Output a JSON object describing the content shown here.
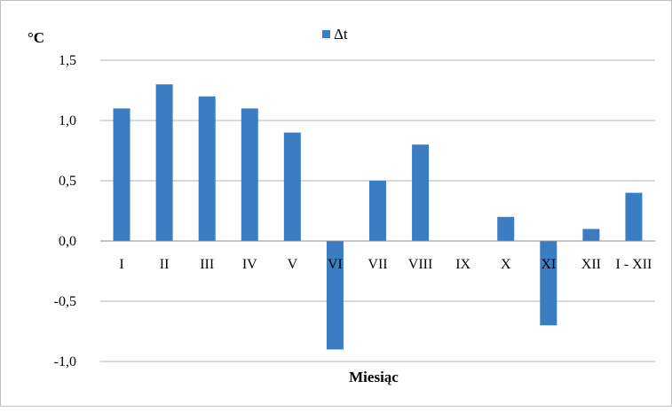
{
  "chart_data": {
    "type": "bar",
    "ylabel": "°C",
    "xlabel": "Miesiąc",
    "legend": {
      "position": "top",
      "entries": [
        "Δt"
      ]
    },
    "categories": [
      "I",
      "II",
      "III",
      "IV",
      "V",
      "VI",
      "VII",
      "VIII",
      "IX",
      "X",
      "XI",
      "XII",
      "I - XII"
    ],
    "series": [
      {
        "name": "Δt",
        "values": [
          1.1,
          1.3,
          1.2,
          1.1,
          0.9,
          -0.9,
          0.5,
          0.8,
          0.0,
          0.2,
          -0.7,
          0.1,
          0.4
        ]
      }
    ],
    "yticks": [
      "1,5",
      "1,0",
      "0,5",
      "0,0",
      "-0,5",
      "-1,0"
    ],
    "ylim": [
      -1.0,
      1.5
    ],
    "grid": true,
    "colors": {
      "bar": "#3a7dc2",
      "grid": "#b3b3b3",
      "axis": "#8c8c8c"
    }
  }
}
